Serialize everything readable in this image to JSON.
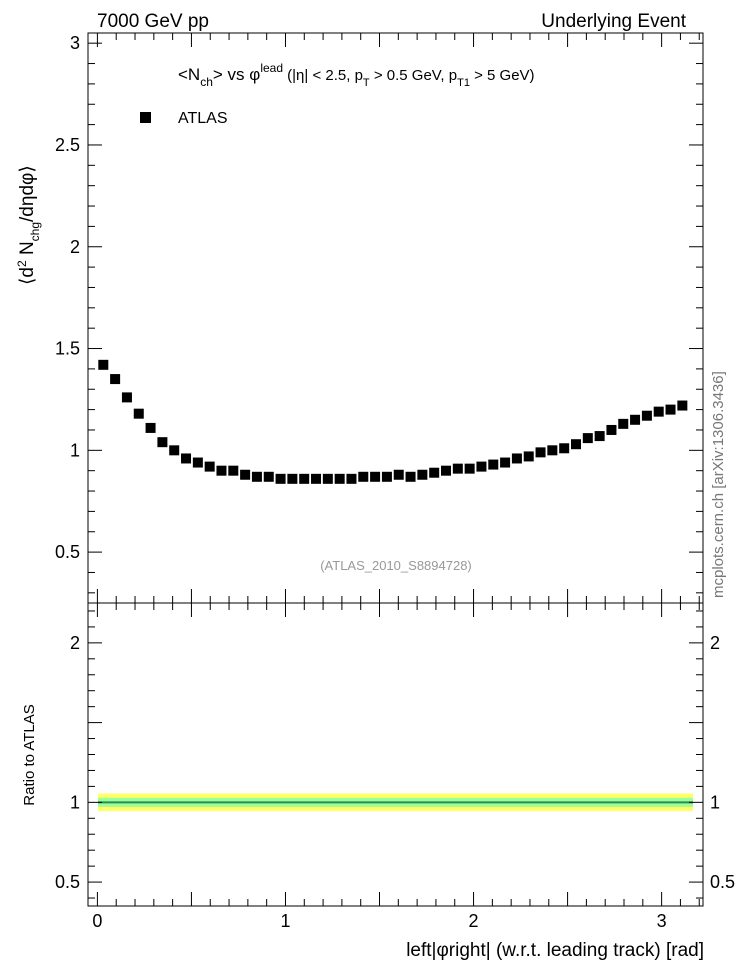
{
  "header": {
    "left": "7000 GeV pp",
    "right": "Underlying Event"
  },
  "side_label": "mcplots.cern.ch [arXiv:1306.3436]",
  "chart_data": {
    "type": "scatter",
    "top_panel": {
      "title_parts": {
        "n": "<N",
        "n_sub": "ch",
        "vs": "> vs φ",
        "lead_sup": "lead",
        "cut1": " (|η| < 2.5, p",
        "pt_sub": "T",
        "cut2": " > 0.5 GeV, p",
        "pt1_sub": "T1",
        "cut3": " > 5 GeV)"
      },
      "ylabel_parts": {
        "open": "⟨d",
        "two": "2",
        "n": " N",
        "chg": "chg",
        "rest": "/dηdφ⟩"
      },
      "ylim": [
        0.25,
        3.05
      ],
      "yticks": [
        "0.5",
        "1",
        "1.5",
        "2",
        "2.5",
        "3"
      ],
      "legend": "ATLAS",
      "watermark": "(ATLAS_2010_S8894728)",
      "series": [
        {
          "name": "ATLAS",
          "x": [
            0.0314,
            0.0942,
            0.1571,
            0.2199,
            0.2827,
            0.3456,
            0.4084,
            0.4712,
            0.5341,
            0.5969,
            0.6597,
            0.7226,
            0.7854,
            0.8482,
            0.9111,
            0.9739,
            1.0367,
            1.0996,
            1.1624,
            1.2252,
            1.2881,
            1.3509,
            1.4137,
            1.4765,
            1.5394,
            1.6022,
            1.665,
            1.7279,
            1.7907,
            1.8535,
            1.9164,
            1.9792,
            2.042,
            2.1049,
            2.1677,
            2.2305,
            2.2934,
            2.3562,
            2.419,
            2.4819,
            2.5447,
            2.6075,
            2.6704,
            2.7332,
            2.796,
            2.8588,
            2.9217,
            2.9845,
            3.0473,
            3.1102
          ],
          "y": [
            1.42,
            1.35,
            1.26,
            1.18,
            1.11,
            1.04,
            1.0,
            0.96,
            0.94,
            0.92,
            0.9,
            0.9,
            0.88,
            0.87,
            0.87,
            0.86,
            0.86,
            0.86,
            0.86,
            0.86,
            0.86,
            0.86,
            0.87,
            0.87,
            0.87,
            0.88,
            0.87,
            0.88,
            0.89,
            0.9,
            0.91,
            0.91,
            0.92,
            0.93,
            0.94,
            0.96,
            0.97,
            0.99,
            1.0,
            1.01,
            1.03,
            1.06,
            1.07,
            1.1,
            1.13,
            1.15,
            1.17,
            1.19,
            1.2,
            1.22
          ]
        }
      ]
    },
    "ratio_panel": {
      "ylabel": "Ratio to ATLAS",
      "ylim": [
        0.35,
        2.25
      ],
      "yticks": [
        "0.5",
        "1",
        "2"
      ],
      "reference": 1.0,
      "bands": [
        {
          "lo": 0.945,
          "hi": 1.055,
          "color": "#ffff66"
        },
        {
          "lo": 0.972,
          "hi": 1.028,
          "color": "#99ff99"
        }
      ]
    },
    "xlabel": "left|φright| (w.r.t. leading track) [rad]",
    "xlim": [
      -0.05,
      3.22
    ],
    "xticks": [
      "0",
      "1",
      "2",
      "3"
    ]
  }
}
